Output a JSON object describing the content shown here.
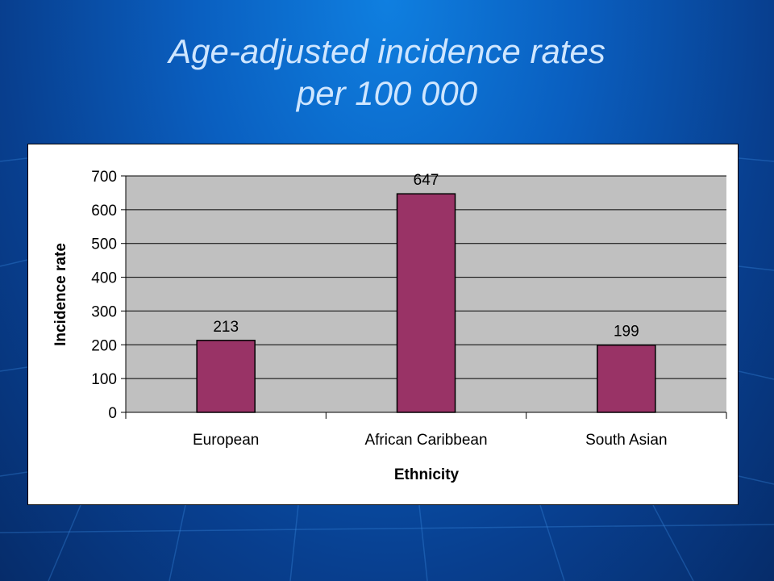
{
  "slide": {
    "title_line1": "Age-adjusted incidence rates",
    "title_line2": "per 100 000"
  },
  "colors": {
    "bar_fill": "#993366",
    "plot_background": "#c0c0c0",
    "title_text": "#cfe6ff"
  },
  "chart_data": {
    "type": "bar",
    "categories": [
      "European",
      "African Caribbean",
      "South Asian"
    ],
    "values": [
      213,
      647,
      199
    ],
    "data_labels": [
      "213",
      "647",
      "199"
    ],
    "title": "",
    "xlabel": "Ethnicity",
    "ylabel": "Incidence rate",
    "ylim": [
      0,
      700
    ],
    "yticks": [
      0,
      100,
      200,
      300,
      400,
      500,
      600,
      700
    ],
    "grid": true,
    "legend": "none"
  }
}
